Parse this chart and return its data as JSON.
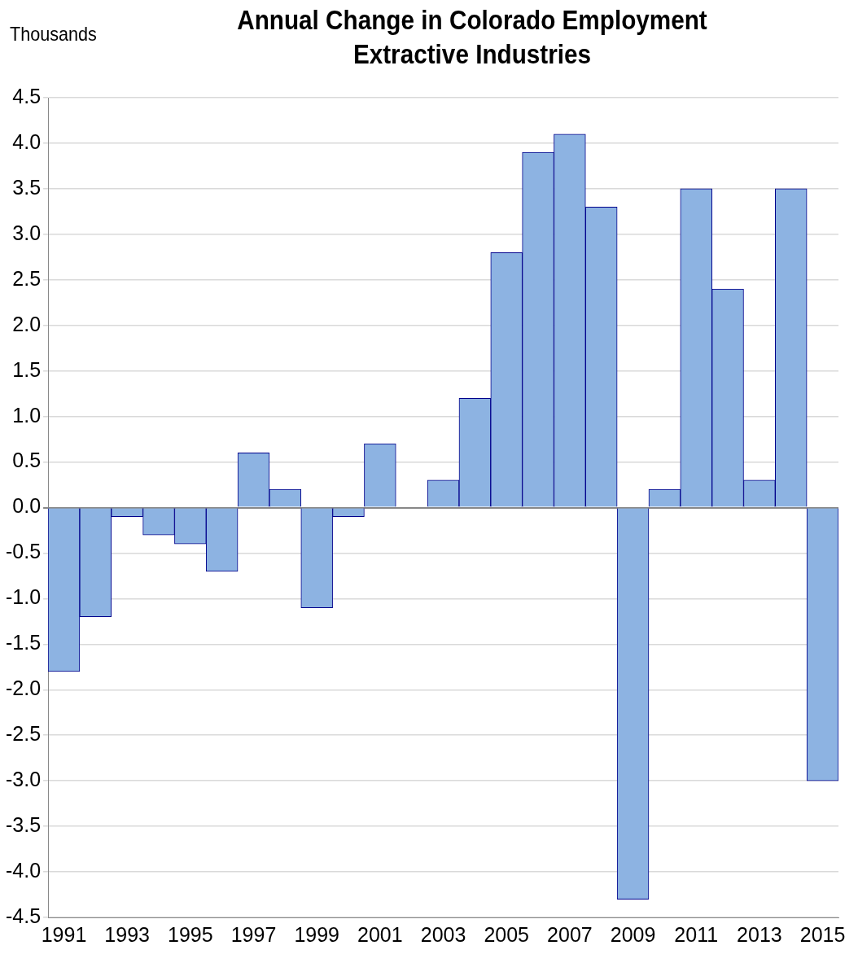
{
  "chart_data": {
    "type": "bar",
    "title": "Annual Change in Colorado Employment\nExtractive Industries",
    "ylabel": "Thousands",
    "categories": [
      "1991",
      null,
      "1993",
      null,
      "1995",
      null,
      "1997",
      null,
      "1999",
      null,
      "2001",
      null,
      "2003",
      null,
      "2005",
      null,
      "2007",
      null,
      "2009",
      null,
      "2011",
      null,
      "2013",
      null,
      "2015"
    ],
    "values": [
      -1.8,
      -1.2,
      -0.1,
      -0.3,
      -0.4,
      -0.7,
      0.6,
      0.2,
      -1.1,
      -0.1,
      0.7,
      0,
      0.3,
      1.2,
      2.8,
      3.9,
      4.1,
      3.3,
      -4.3,
      0.2,
      3.5,
      2.4,
      0.3,
      3.5,
      -3.0
    ],
    "color": "#8db3e2",
    "ylim": [
      -4.5,
      4.5
    ],
    "yticks": [
      {
        "value": -4.5,
        "label": "-4.5"
      },
      {
        "value": -4,
        "label": "-4.0"
      },
      {
        "value": -3.5,
        "label": "-3.5"
      },
      {
        "value": -3,
        "label": "-3.0"
      },
      {
        "value": -2.5,
        "label": "-2.5"
      },
      {
        "value": -2,
        "label": "-2.0"
      },
      {
        "value": -1.5,
        "label": "-1.5"
      },
      {
        "value": -1,
        "label": "-1.0"
      },
      {
        "value": -0.5,
        "label": "-0.5"
      },
      {
        "value": 0,
        "label": "0.0"
      },
      {
        "value": 0.5,
        "label": "0.5"
      },
      {
        "value": 1,
        "label": "1.0"
      },
      {
        "value": 1.5,
        "label": "1.5"
      },
      {
        "value": 2,
        "label": "2.0"
      },
      {
        "value": 2.5,
        "label": "2.5"
      },
      {
        "value": 3,
        "label": "3.0"
      },
      {
        "value": 3.5,
        "label": "3.5"
      },
      {
        "value": 4,
        "label": "4.0"
      },
      {
        "value": 4.5,
        "label": "4.5"
      }
    ],
    "grid": "y",
    "legend": false
  }
}
